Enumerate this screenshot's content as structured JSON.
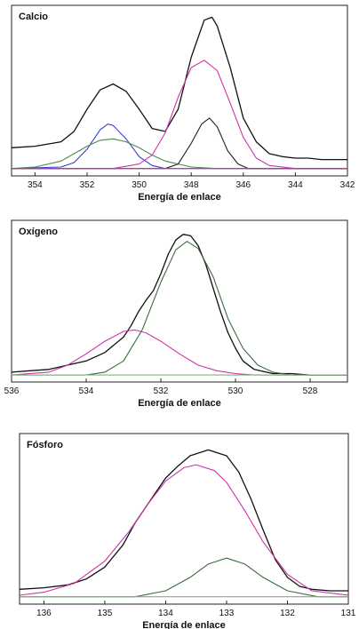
{
  "chart_data": [
    {
      "type": "line",
      "title": "Calcio",
      "xlabel": "Energía de enlace",
      "ylabel": "",
      "xlim": [
        354.9,
        342.0
      ],
      "ylim": [
        -0.05,
        1.1
      ],
      "x_ticks": [
        354,
        352,
        350,
        348,
        346,
        344,
        342
      ],
      "x_reversed": true,
      "grid": false,
      "legend": "none",
      "series": [
        {
          "color": "#111111",
          "role": "envelope",
          "x": [
            354.9,
            354,
            353,
            352.5,
            352,
            351.5,
            351,
            350.5,
            350,
            349.5,
            349,
            348.5,
            348,
            347.5,
            347.2,
            347,
            346.5,
            346,
            345.5,
            345,
            344.5,
            344,
            343.5,
            343,
            342.5,
            342
          ],
          "y": [
            0.14,
            0.15,
            0.18,
            0.25,
            0.4,
            0.53,
            0.57,
            0.52,
            0.4,
            0.27,
            0.25,
            0.4,
            0.75,
            1.0,
            1.02,
            0.96,
            0.68,
            0.34,
            0.18,
            0.1,
            0.08,
            0.07,
            0.07,
            0.06,
            0.06,
            0.06
          ]
        },
        {
          "color": "#3a3ad0",
          "role": "component",
          "x": [
            354.9,
            353,
            352.5,
            352,
            351.5,
            351.2,
            351,
            350.5,
            350,
            349.5,
            349,
            348,
            342
          ],
          "y": [
            0.0,
            0.01,
            0.04,
            0.13,
            0.26,
            0.3,
            0.29,
            0.2,
            0.08,
            0.02,
            0.0,
            0.0,
            0.0
          ]
        },
        {
          "color": "#4c8a4c",
          "role": "component",
          "x": [
            354.9,
            354,
            353,
            352.5,
            352,
            351.5,
            351,
            350.5,
            350,
            349.5,
            349,
            348,
            347,
            346,
            342
          ],
          "y": [
            0.0,
            0.01,
            0.05,
            0.1,
            0.15,
            0.19,
            0.2,
            0.18,
            0.14,
            0.09,
            0.05,
            0.01,
            0.0,
            0.0,
            0.0
          ]
        },
        {
          "color": "#cc33aa",
          "role": "component",
          "x": [
            354.9,
            351,
            350,
            349.5,
            349,
            348.5,
            348,
            347.5,
            347,
            346.5,
            346,
            345.5,
            345,
            344,
            342
          ],
          "y": [
            0.0,
            0.0,
            0.03,
            0.09,
            0.24,
            0.48,
            0.68,
            0.73,
            0.66,
            0.44,
            0.21,
            0.07,
            0.02,
            0.0,
            0.0
          ]
        },
        {
          "color": "#222222",
          "role": "component",
          "x": [
            354.9,
            349,
            348.5,
            348,
            347.6,
            347.3,
            347,
            346.6,
            346.2,
            345.8,
            345,
            342
          ],
          "y": [
            0.0,
            0.0,
            0.03,
            0.17,
            0.3,
            0.34,
            0.28,
            0.12,
            0.03,
            0.0,
            0.0,
            0.0
          ]
        },
        {
          "color": "#cc33aa",
          "role": "baseline",
          "x": [
            354.9,
            342
          ],
          "y": [
            0.0,
            0.0
          ]
        }
      ]
    },
    {
      "type": "line",
      "title": "Oxígeno",
      "xlabel": "Energía de enlace",
      "ylabel": "",
      "xlim": [
        536.0,
        527.0
      ],
      "ylim": [
        -0.05,
        1.1
      ],
      "x_ticks": [
        536,
        534,
        532,
        530,
        528
      ],
      "x_reversed": true,
      "grid": false,
      "legend": "none",
      "series": [
        {
          "color": "#111111",
          "role": "envelope",
          "x": [
            536,
            535.5,
            535,
            534.5,
            534,
            533.5,
            533,
            532.8,
            532.6,
            532.4,
            532.2,
            532,
            531.8,
            531.6,
            531.4,
            531.2,
            531,
            530.8,
            530.6,
            530.4,
            530.2,
            530,
            529.8,
            529.5,
            529,
            528.5,
            528,
            527.5,
            527
          ],
          "y": [
            0.02,
            0.03,
            0.04,
            0.07,
            0.1,
            0.16,
            0.27,
            0.35,
            0.45,
            0.53,
            0.6,
            0.72,
            0.86,
            0.96,
            1.0,
            0.99,
            0.92,
            0.79,
            0.62,
            0.45,
            0.3,
            0.19,
            0.1,
            0.04,
            0.01,
            0.01,
            0.0,
            0.0,
            0.0
          ]
        },
        {
          "color": "#cc33aa",
          "role": "component",
          "x": [
            536,
            535,
            534.5,
            534,
            533.5,
            533,
            532.7,
            532.4,
            532,
            531.5,
            531,
            530.5,
            530,
            529.5,
            529,
            527
          ],
          "y": [
            0.0,
            0.02,
            0.07,
            0.15,
            0.24,
            0.31,
            0.32,
            0.3,
            0.24,
            0.15,
            0.07,
            0.03,
            0.01,
            0.0,
            0.0,
            0.0
          ]
        },
        {
          "color": "#3d6b3d",
          "role": "component",
          "x": [
            536,
            534,
            533.5,
            533,
            532.5,
            532,
            531.6,
            531.3,
            531,
            530.6,
            530.2,
            529.8,
            529.4,
            529,
            528.5,
            527
          ],
          "y": [
            0.0,
            0.0,
            0.02,
            0.1,
            0.32,
            0.66,
            0.89,
            0.95,
            0.9,
            0.7,
            0.4,
            0.19,
            0.07,
            0.02,
            0.0,
            0.0
          ]
        },
        {
          "color": "#7ab87a",
          "role": "baseline",
          "x": [
            536,
            527
          ],
          "y": [
            0.0,
            0.0
          ]
        }
      ]
    },
    {
      "type": "line",
      "title": "Fósforo",
      "xlabel": "Energía de enlace",
      "ylabel": "",
      "xlim": [
        136.4,
        131.0
      ],
      "ylim": [
        -0.05,
        1.1
      ],
      "x_ticks": [
        136,
        135,
        134,
        133,
        132,
        131
      ],
      "x_reversed": true,
      "grid": false,
      "legend": "none",
      "series": [
        {
          "color": "#111111",
          "role": "envelope",
          "x": [
            136.4,
            136,
            135.6,
            135.3,
            135,
            134.7,
            134.5,
            134.2,
            134,
            133.8,
            133.6,
            133.3,
            133,
            132.8,
            132.6,
            132.4,
            132.2,
            132,
            131.8,
            131.6,
            131.3,
            131
          ],
          "y": [
            0.05,
            0.06,
            0.08,
            0.12,
            0.2,
            0.35,
            0.5,
            0.68,
            0.8,
            0.88,
            0.95,
            0.99,
            0.95,
            0.84,
            0.66,
            0.45,
            0.25,
            0.13,
            0.07,
            0.05,
            0.04,
            0.04
          ]
        },
        {
          "color": "#cc33aa",
          "role": "component",
          "x": [
            136.4,
            136,
            135.5,
            135,
            134.6,
            134.3,
            134,
            133.7,
            133.5,
            133.2,
            133,
            132.7,
            132.4,
            132,
            131.6,
            131
          ],
          "y": [
            0.01,
            0.03,
            0.09,
            0.24,
            0.44,
            0.62,
            0.78,
            0.87,
            0.89,
            0.85,
            0.77,
            0.58,
            0.37,
            0.15,
            0.04,
            0.01
          ]
        },
        {
          "color": "#3d6b3d",
          "role": "component",
          "x": [
            136.4,
            134.5,
            134,
            133.6,
            133.3,
            133,
            132.7,
            132.4,
            132,
            131.5,
            131
          ],
          "y": [
            0.0,
            0.0,
            0.04,
            0.13,
            0.22,
            0.26,
            0.22,
            0.13,
            0.04,
            0.0,
            0.0
          ]
        },
        {
          "color": "#7ab87a",
          "role": "baseline",
          "x": [
            136.4,
            131
          ],
          "y": [
            0.0,
            0.0
          ]
        }
      ]
    }
  ]
}
